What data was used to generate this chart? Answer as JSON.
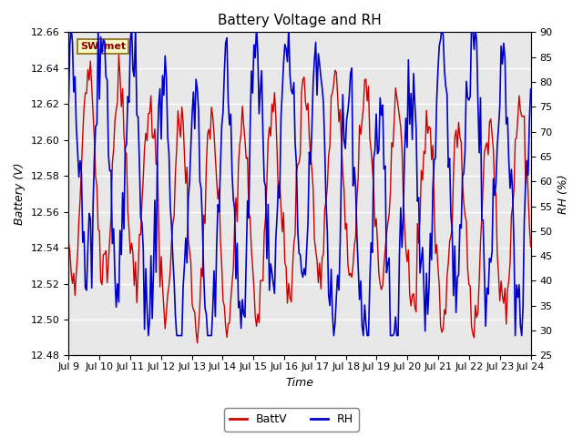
{
  "title": "Battery Voltage and RH",
  "xlabel": "Time",
  "ylabel_left": "Battery (V)",
  "ylabel_right": "RH (%)",
  "station_label": "SW_met",
  "ylim_left": [
    12.48,
    12.66
  ],
  "ylim_right": [
    25,
    90
  ],
  "yticks_left": [
    12.48,
    12.5,
    12.52,
    12.54,
    12.56,
    12.58,
    12.6,
    12.62,
    12.64,
    12.66
  ],
  "yticks_right": [
    25,
    30,
    35,
    40,
    45,
    50,
    55,
    60,
    65,
    70,
    75,
    80,
    85,
    90
  ],
  "xtick_labels": [
    "Jul 9",
    "Jul 10",
    "Jul 11",
    "Jul 12",
    "Jul 13",
    "Jul 14",
    "Jul 15",
    "Jul 16",
    "Jul 17",
    "Jul 18",
    "Jul 19",
    "Jul 20",
    "Jul 21",
    "Jul 22",
    "Jul 23",
    "Jul 24"
  ],
  "background_color": "#ffffff",
  "plot_bg_color": "#d8d8d8",
  "inner_bg_color": "#e8e8e8",
  "grid_color": "#ffffff",
  "batt_color": "#cc0000",
  "rh_color": "#0000cc",
  "legend_batt": "BattV",
  "legend_rh": "RH",
  "title_fontsize": 11,
  "label_fontsize": 9,
  "tick_fontsize": 8
}
